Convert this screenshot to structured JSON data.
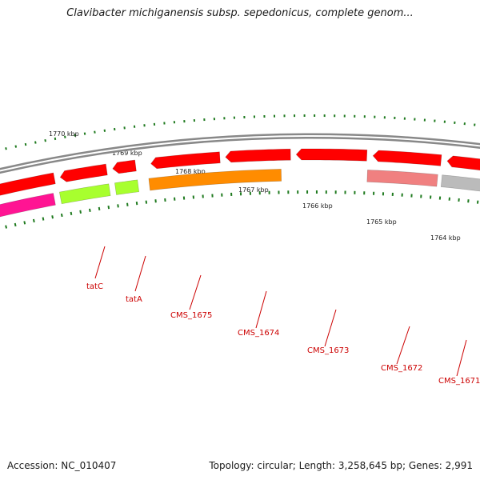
{
  "title": "Clavibacter michiganensis subsp. sepedonicus, complete genom...",
  "footer": {
    "accession": "Accession: NC_010407",
    "summary": "Topology: circular; Length: 3,258,645 bp; Genes: 2,991"
  },
  "ruler": {
    "labels": [
      "1770 kbp",
      "1769 kbp",
      "1768 kbp",
      "1767 kbp",
      "1766 kbp",
      "1765 kbp",
      "1764 kbp"
    ]
  },
  "genes": [
    {
      "label": "tatC",
      "color": "#a8ff2e"
    },
    {
      "label": "tatA",
      "color": "#a8ff2e"
    },
    {
      "label": "CMS_1675",
      "color": "#ff8c00"
    },
    {
      "label": "CMS_1674",
      "color": "#ff8c00"
    },
    {
      "label": "CMS_1673",
      "color": "#ff0000"
    },
    {
      "label": "CMS_1672",
      "color": "#f08080"
    },
    {
      "label": "CMS_1671",
      "color": "#bbbbbb"
    }
  ],
  "colors": {
    "backbone": "#888888",
    "cds": "#ff0000",
    "rna": "#ff1493",
    "tick": "#1f7a1f",
    "label": "#cc0000"
  }
}
